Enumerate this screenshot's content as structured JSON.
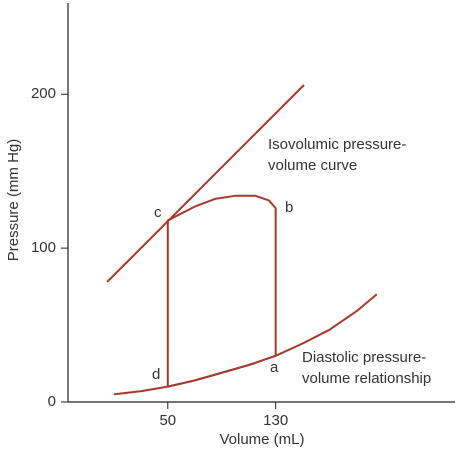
{
  "chart_data": {
    "type": "line",
    "x_label": "Volume (mL)",
    "y_label": "Pressure (mm Hg)",
    "xlim": [
      -24,
      263
    ],
    "ylim": [
      0,
      258
    ],
    "xticks": [
      50,
      130
    ],
    "yticks": [
      0,
      100,
      200
    ],
    "color": "#a33a2c",
    "series": [
      {
        "x": [
          5,
          151
        ],
        "values": [
          78,
          206
        ]
      },
      {
        "x": [
          10,
          30,
          50,
          70,
          90,
          110,
          130,
          150,
          170,
          190,
          205
        ],
        "values": [
          5,
          7,
          10,
          14,
          19,
          24,
          30,
          38,
          47,
          59,
          70
        ]
      },
      {
        "x": [
          130,
          130,
          125,
          115,
          100,
          85,
          70,
          50,
          50,
          70,
          90,
          110,
          130
        ],
        "values": [
          30,
          126,
          131,
          134,
          134,
          132,
          127,
          118,
          10,
          14,
          19,
          24,
          30
        ]
      }
    ],
    "annotations": [
      {
        "lines": [
          "Isovolumic pressure-",
          "volume curve"
        ]
      },
      {
        "lines": [
          "Diastolic pressure-",
          "volume relationship"
        ]
      },
      {
        "lines": [
          "a"
        ]
      },
      {
        "lines": [
          "b"
        ]
      },
      {
        "lines": [
          "c"
        ]
      },
      {
        "lines": [
          "d"
        ]
      }
    ]
  }
}
